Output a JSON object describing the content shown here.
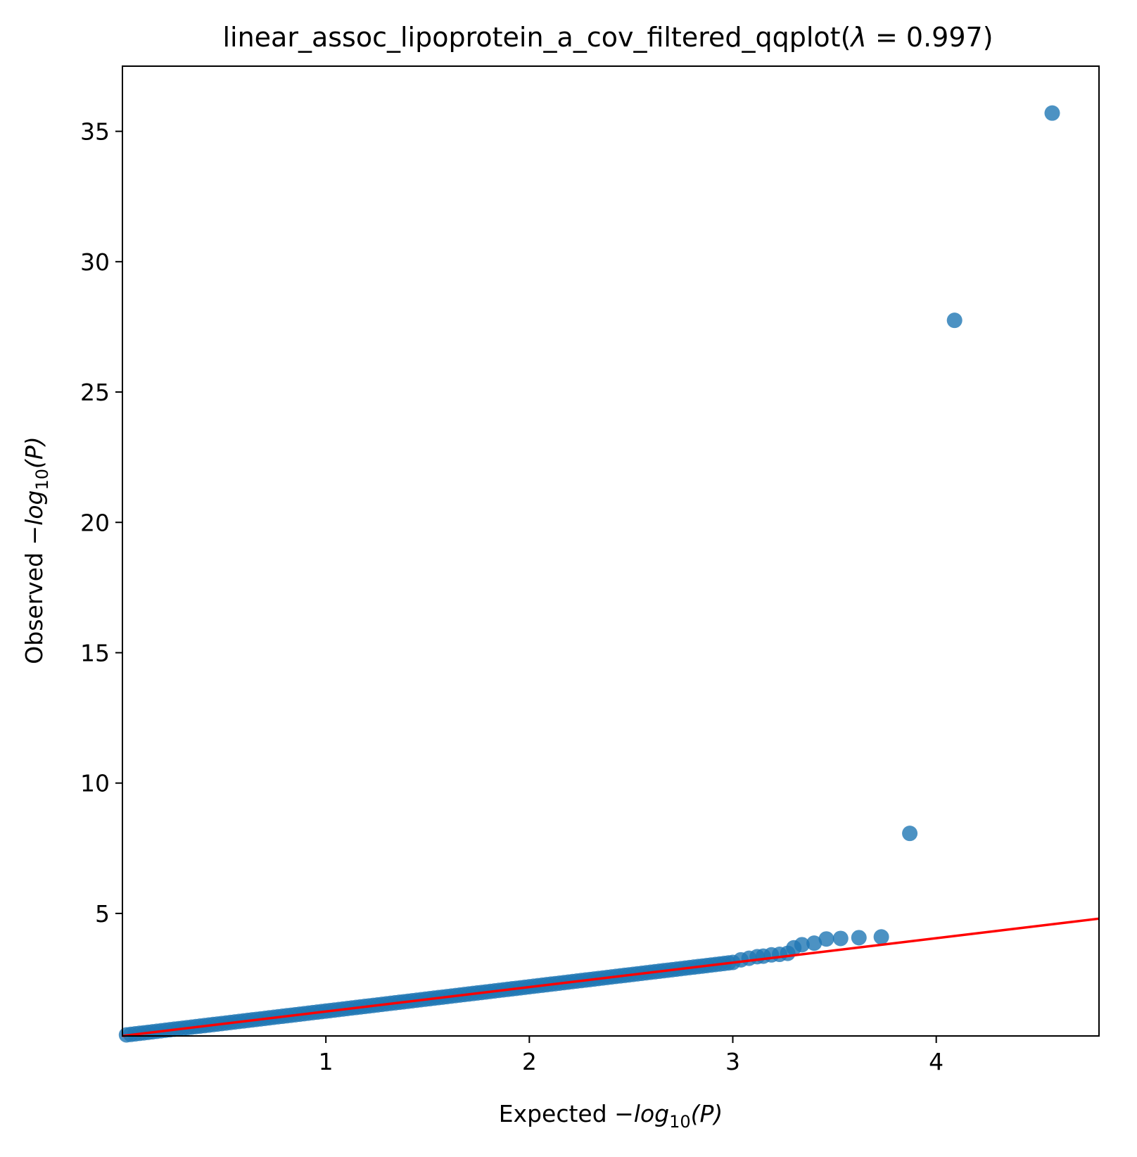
{
  "chart_data": {
    "type": "scatter",
    "title_prefix": "linear_assoc_lipoprotein_a_cov_filtered_qqplot(",
    "title_lambda_symbol": "λ",
    "title_equals": " = ",
    "title_value": "0.997",
    "title_suffix": ")",
    "xlabel_prefix": "Expected ",
    "ylabel_prefix": "Observed ",
    "log_minus": "−",
    "log_word": "log",
    "log_base": "10",
    "log_arg": "(P)",
    "xlim": [
      0,
      4.8
    ],
    "ylim": [
      0.3,
      37.5
    ],
    "x_ticks": [
      1,
      2,
      3,
      4
    ],
    "x_tick_labels": [
      "1",
      "2",
      "3",
      "4"
    ],
    "y_ticks": [
      5,
      10,
      15,
      20,
      25,
      30,
      35
    ],
    "y_tick_labels": [
      "5",
      "10",
      "15",
      "20",
      "25",
      "30",
      "35"
    ],
    "grid": false,
    "point_color": "#1f77b4",
    "point_alpha": 0.8,
    "line_color": "#ff0000",
    "reference_line": {
      "x": [
        0,
        4.8
      ],
      "y": [
        0.3,
        4.8
      ]
    },
    "band": {
      "x_start": 0.02,
      "x_end": 3.0,
      "y_start": 0.34,
      "y_end": 3.12
    },
    "points": [
      {
        "x": 3.04,
        "y": 3.22
      },
      {
        "x": 3.08,
        "y": 3.28
      },
      {
        "x": 3.12,
        "y": 3.34
      },
      {
        "x": 3.15,
        "y": 3.36
      },
      {
        "x": 3.19,
        "y": 3.41
      },
      {
        "x": 3.23,
        "y": 3.43
      },
      {
        "x": 3.27,
        "y": 3.47
      },
      {
        "x": 3.3,
        "y": 3.68
      },
      {
        "x": 3.34,
        "y": 3.8
      },
      {
        "x": 3.4,
        "y": 3.86
      },
      {
        "x": 3.46,
        "y": 4.02
      },
      {
        "x": 3.53,
        "y": 4.04
      },
      {
        "x": 3.62,
        "y": 4.07
      },
      {
        "x": 3.73,
        "y": 4.1
      },
      {
        "x": 3.87,
        "y": 8.07
      },
      {
        "x": 4.09,
        "y": 27.75
      },
      {
        "x": 4.57,
        "y": 35.7
      }
    ]
  }
}
